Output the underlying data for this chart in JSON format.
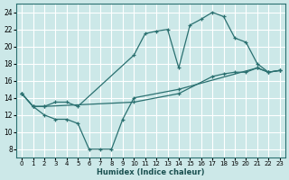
{
  "xlabel": "Humidex (Indice chaleur)",
  "bg_color": "#cce8e8",
  "grid_color": "#ffffff",
  "line_color": "#2a7070",
  "xlim": [
    -0.5,
    23.5
  ],
  "ylim": [
    7,
    25
  ],
  "xticks": [
    0,
    1,
    2,
    3,
    4,
    5,
    6,
    7,
    8,
    9,
    10,
    11,
    12,
    13,
    14,
    15,
    16,
    17,
    18,
    19,
    20,
    21,
    22,
    23
  ],
  "yticks": [
    8,
    10,
    12,
    14,
    16,
    18,
    20,
    22,
    24
  ],
  "line1_x": [
    0,
    1,
    2,
    3,
    4,
    5,
    10,
    11,
    12,
    13,
    14,
    15,
    16,
    17,
    18,
    19,
    20,
    21,
    22,
    23
  ],
  "line1_y": [
    14.5,
    13.0,
    13.0,
    13.5,
    13.5,
    13.0,
    19.0,
    21.5,
    21.8,
    22.0,
    17.5,
    22.5,
    23.2,
    24.0,
    23.5,
    21.0,
    20.5,
    18.0,
    17.0,
    17.2
  ],
  "line2_x": [
    0,
    1,
    2,
    3,
    4,
    5,
    6,
    7,
    8,
    9,
    10,
    14,
    21,
    22,
    23
  ],
  "line2_y": [
    14.5,
    13.0,
    12.0,
    11.5,
    11.5,
    11.0,
    8.0,
    8.0,
    8.0,
    11.5,
    14.0,
    15.0,
    17.5,
    17.0,
    17.2
  ],
  "line3_x": [
    0,
    1,
    2,
    10,
    14,
    17,
    18,
    19,
    20,
    21,
    22,
    23
  ],
  "line3_y": [
    14.5,
    13.0,
    13.0,
    13.5,
    14.5,
    16.5,
    16.8,
    17.0,
    17.0,
    17.5,
    17.0,
    17.2
  ]
}
